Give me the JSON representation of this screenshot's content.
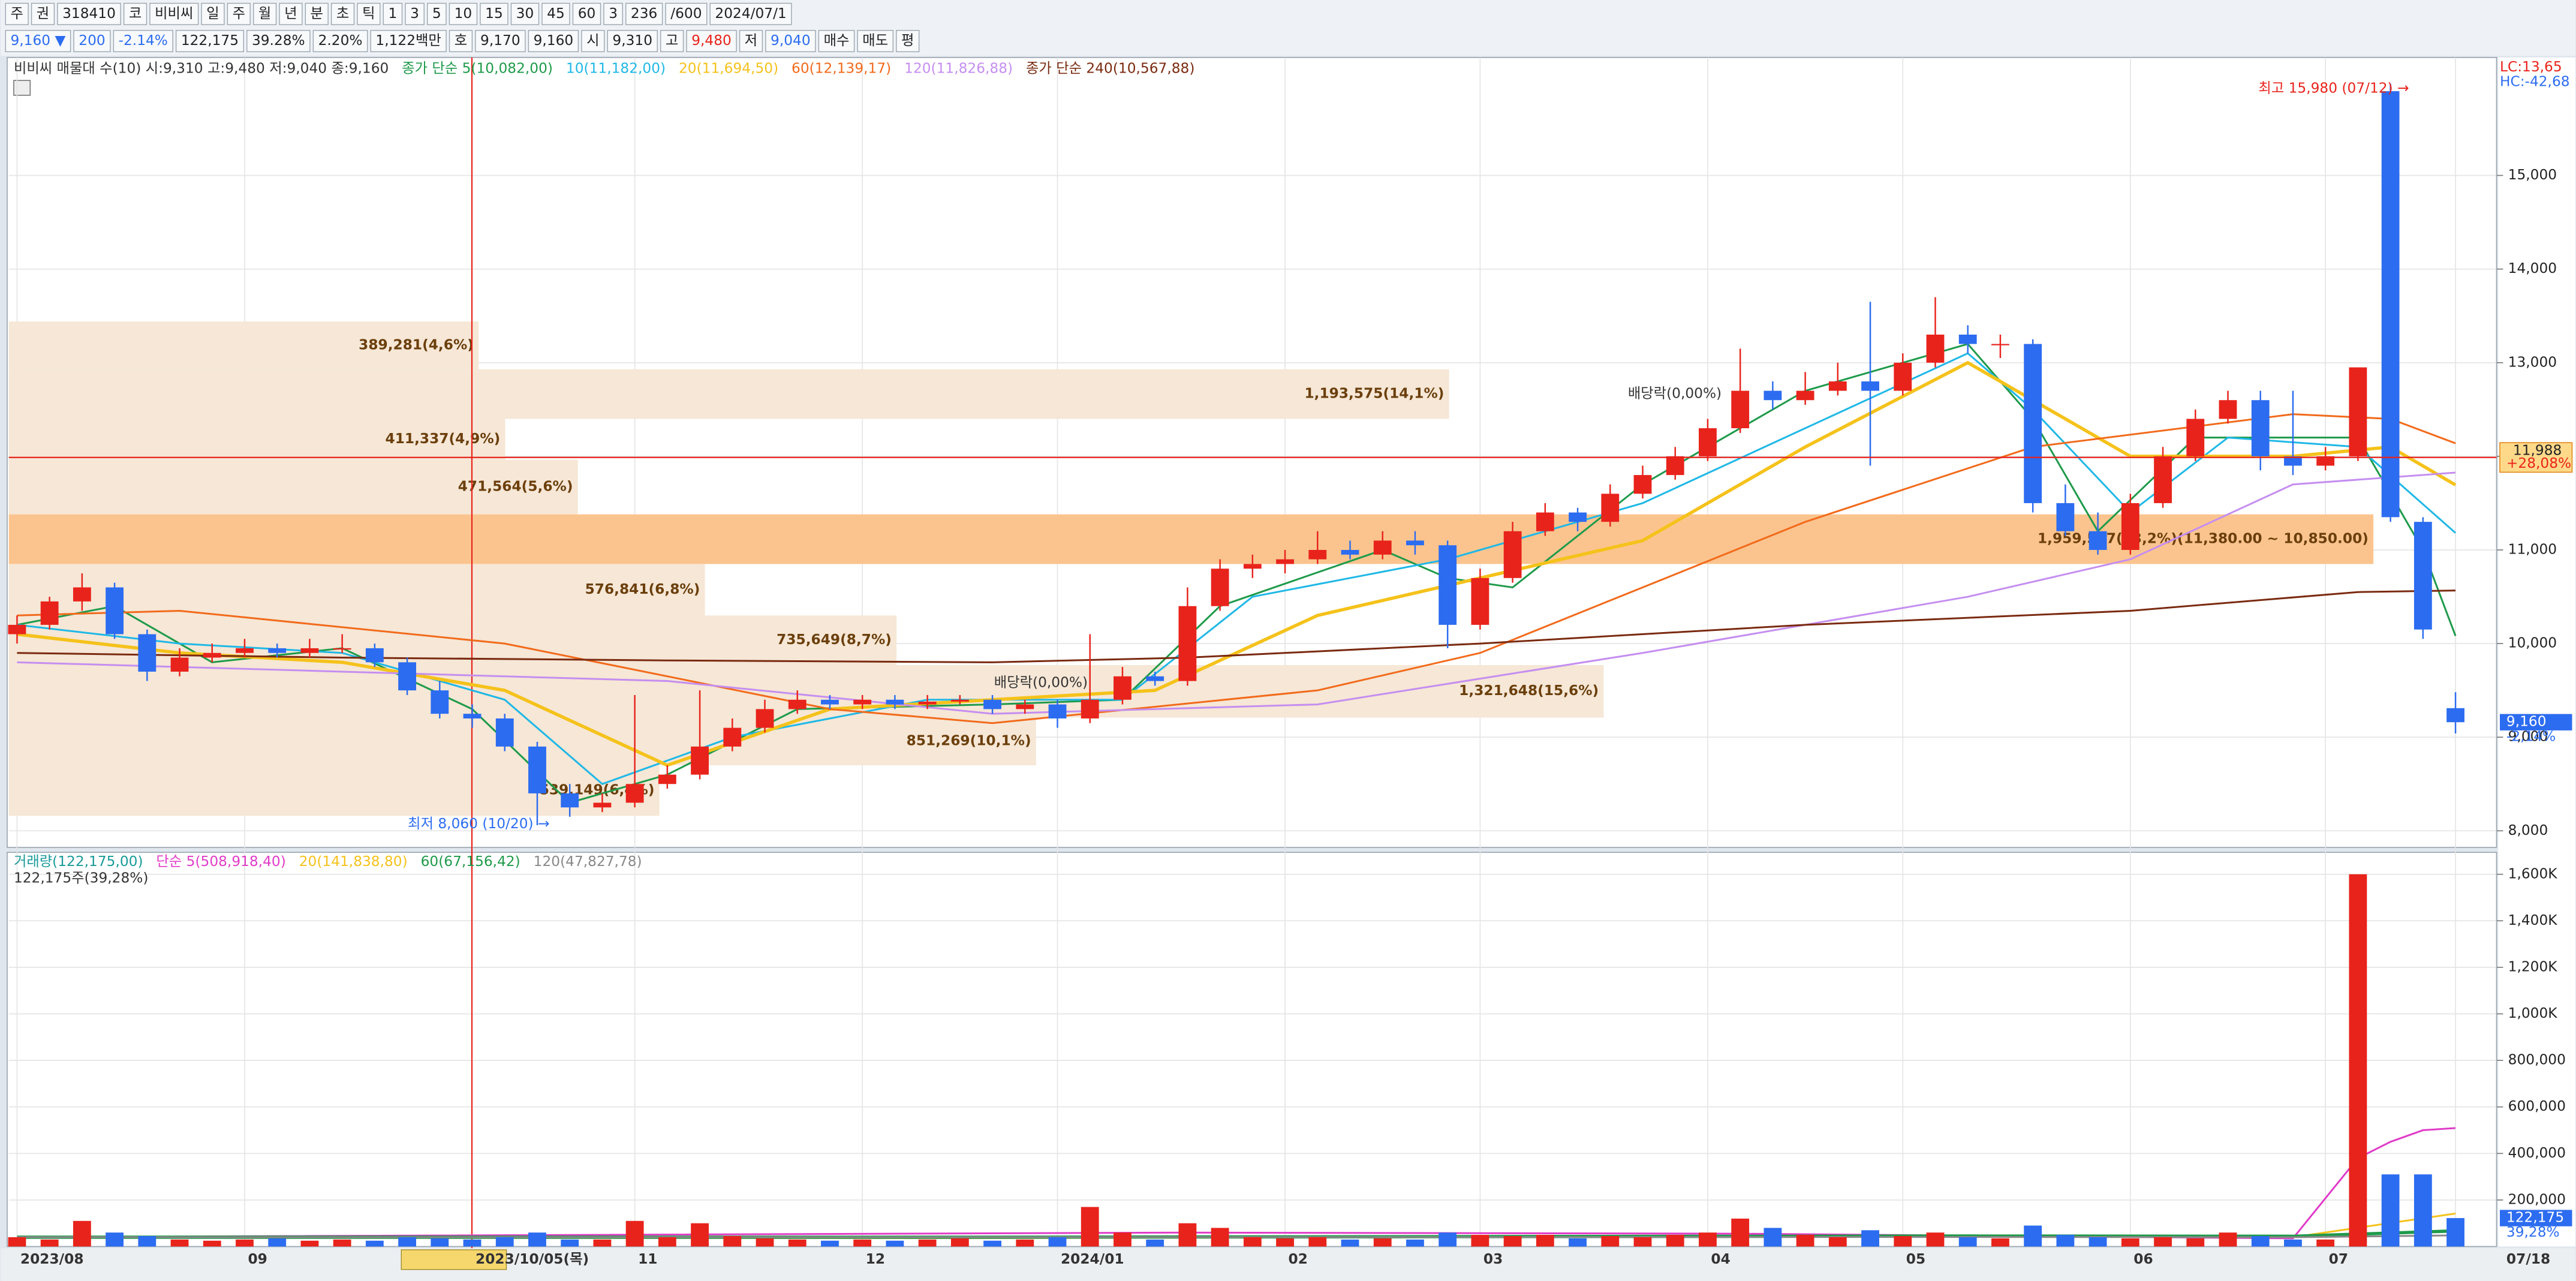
{
  "toolbar": {
    "row1": [
      "주",
      "권",
      "318410",
      "코",
      "비비씨",
      "일",
      "주",
      "월",
      "년",
      "분",
      "초",
      "틱",
      "1",
      "3",
      "5",
      "10",
      "15",
      "30",
      "45",
      "60",
      "3",
      "236",
      "/600",
      "2024/07/1"
    ],
    "row2": [
      "9,160 ▼",
      "200",
      "-2.14%",
      "122,175",
      "39.28%",
      "2.20%",
      "1,122백만",
      "호",
      "9,170",
      "9,160",
      "시",
      "9,310",
      "고",
      "9,480",
      "저",
      "9,040",
      "매수",
      "매도",
      "평"
    ]
  },
  "chart_data": [
    {
      "type": "candlestick",
      "legend_prefix": "비비씨 매물대 수(10)  시:9,310 고:9,480 저:9,040 종:9,160",
      "corner_labels": {
        "lc": "LC:13,65",
        "hc": "HC:-42,68"
      },
      "annotations": [
        "최고 15,980 (07/12) →",
        "최저 8,060 (10/20) →",
        "배당락(0,00%)",
        "배당락(0,00%)"
      ],
      "up_color": "#e8231b",
      "down_color": "#2c6cf0",
      "ylim": [
        7840,
        16260
      ],
      "yticks": [
        {
          "value": 8000,
          "label": "8,000"
        },
        {
          "value": 9000,
          "label": "9,000"
        },
        {
          "value": 10000,
          "label": "10,000"
        },
        {
          "value": 11000,
          "label": "11,000"
        },
        {
          "value": 12000,
          "label": "12,000"
        },
        {
          "value": 13000,
          "label": "13,000"
        },
        {
          "value": 14000,
          "label": "14,000"
        },
        {
          "value": 15000,
          "label": "15,000"
        }
      ],
      "grid": true,
      "ohlc": [
        [
          10100,
          10300,
          10000,
          10200
        ],
        [
          10200,
          10500,
          10150,
          10450
        ],
        [
          10450,
          10750,
          10350,
          10600
        ],
        [
          10600,
          10650,
          10050,
          10100
        ],
        [
          10100,
          10150,
          9600,
          9700
        ],
        [
          9700,
          9950,
          9650,
          9850
        ],
        [
          9850,
          10000,
          9800,
          9900
        ],
        [
          9900,
          10050,
          9850,
          9950
        ],
        [
          9950,
          10000,
          9850,
          9900
        ],
        [
          9900,
          10050,
          9850,
          9950
        ],
        [
          9950,
          10100,
          9900,
          9950
        ],
        [
          9950,
          10000,
          9750,
          9800
        ],
        [
          9800,
          9850,
          9450,
          9500
        ],
        [
          9500,
          9600,
          9200,
          9250
        ],
        [
          9250,
          9350,
          9100,
          9200
        ],
        [
          9200,
          9250,
          8850,
          8900
        ],
        [
          8900,
          8950,
          8060,
          8400
        ],
        [
          8400,
          8500,
          8150,
          8250
        ],
        [
          8250,
          8400,
          8200,
          8300
        ],
        [
          8300,
          9450,
          8250,
          8500
        ],
        [
          8500,
          8700,
          8450,
          8600
        ],
        [
          8600,
          9500,
          8550,
          8900
        ],
        [
          8900,
          9200,
          8850,
          9100
        ],
        [
          9100,
          9400,
          9050,
          9300
        ],
        [
          9300,
          9500,
          9250,
          9400
        ],
        [
          9400,
          9450,
          9300,
          9350
        ],
        [
          9350,
          9450,
          9300,
          9400
        ],
        [
          9400,
          9450,
          9300,
          9350
        ],
        [
          9350,
          9450,
          9300,
          9380
        ],
        [
          9380,
          9450,
          9350,
          9400
        ],
        [
          9400,
          9450,
          9250,
          9300
        ],
        [
          9300,
          9400,
          9250,
          9350
        ],
        [
          9350,
          9400,
          9100,
          9200
        ],
        [
          9200,
          10100,
          9150,
          9400
        ],
        [
          9400,
          9750,
          9350,
          9650
        ],
        [
          9650,
          9700,
          9550,
          9600
        ],
        [
          9600,
          10600,
          9550,
          10400
        ],
        [
          10400,
          10900,
          10350,
          10800
        ],
        [
          10800,
          10950,
          10700,
          10850
        ],
        [
          10850,
          11000,
          10750,
          10900
        ],
        [
          10900,
          11200,
          10850,
          11000
        ],
        [
          11000,
          11100,
          10900,
          10950
        ],
        [
          10950,
          11200,
          10900,
          11100
        ],
        [
          11100,
          11200,
          10950,
          11050
        ],
        [
          11050,
          11100,
          9950,
          10200
        ],
        [
          10200,
          10800,
          10150,
          10700
        ],
        [
          10700,
          11300,
          10650,
          11200
        ],
        [
          11200,
          11500,
          11150,
          11400
        ],
        [
          11400,
          11450,
          11200,
          11300
        ],
        [
          11300,
          11700,
          11250,
          11600
        ],
        [
          11600,
          11900,
          11550,
          11800
        ],
        [
          11800,
          12100,
          11750,
          12000
        ],
        [
          12000,
          12400,
          11950,
          12300
        ],
        [
          12300,
          13150,
          12250,
          12700
        ],
        [
          12700,
          12800,
          12500,
          12600
        ],
        [
          12600,
          12900,
          12550,
          12700
        ],
        [
          12700,
          13000,
          12650,
          12800
        ],
        [
          12800,
          13650,
          11900,
          12700
        ],
        [
          12700,
          13100,
          12650,
          13000
        ],
        [
          13000,
          13700,
          12950,
          13300
        ],
        [
          13300,
          13400,
          13100,
          13200
        ],
        [
          13200,
          13300,
          13050,
          13200
        ],
        [
          13200,
          13250,
          11400,
          11500
        ],
        [
          11500,
          11700,
          11150,
          11200
        ],
        [
          11200,
          11400,
          10950,
          11000
        ],
        [
          11000,
          11600,
          10950,
          11500
        ],
        [
          11500,
          12100,
          11450,
          12000
        ],
        [
          12000,
          12500,
          11950,
          12400
        ],
        [
          12400,
          12700,
          12350,
          12600
        ],
        [
          12600,
          12700,
          11850,
          12000
        ],
        [
          12000,
          12700,
          11800,
          11900
        ],
        [
          11900,
          12100,
          11850,
          12000
        ],
        [
          12000,
          12950,
          11950,
          12950
        ],
        [
          15900,
          15980,
          11300,
          11350
        ],
        [
          11300,
          11350,
          10050,
          10150
        ],
        [
          9310,
          9480,
          9040,
          9160
        ]
      ],
      "volume_profile": {
        "bins": [
          13440,
          12930,
          12400,
          11965,
          11380,
          10850,
          10300,
          9770,
          9210,
          8700,
          8160
        ],
        "values": [
          389281,
          1193575,
          411337,
          471564,
          1959567,
          576841,
          735649,
          1321648,
          851269,
          539149
        ],
        "value_labels": [
          "389,281(4,6%)",
          "1,193,575(14,1%)",
          "411,337(4,9%)",
          "471,564(5,6%)",
          "1,959,567(23,2%)(11,380.00 ~ 10,850.00)",
          "576,841(6,8%)",
          "735,649(8,7%)",
          "1,321,648(15,6%)",
          "851,269(10,1%)",
          "539,149(6,4%)"
        ],
        "color": "#f6e7d6",
        "highlight_color": "#fbc48e"
      },
      "lines": [
        {
          "name": "종가 단순 5(10,082,00)",
          "color": "#1e9a4a",
          "x": [
            0,
            3,
            6,
            10,
            14,
            17,
            20,
            24,
            30,
            34,
            37,
            42,
            44,
            46,
            50,
            55,
            60,
            62,
            64,
            67,
            70,
            72,
            74,
            75
          ],
          "values": [
            10200,
            10400,
            9800,
            9950,
            9300,
            8300,
            8600,
            9300,
            9350,
            9400,
            10400,
            11000,
            10700,
            10600,
            11700,
            12700,
            13200,
            12400,
            11200,
            12200,
            12200,
            12200,
            11000,
            10082
          ]
        },
        {
          "name": "10(11,182,00)",
          "color": "#1fb8e6",
          "x": [
            0,
            5,
            10,
            15,
            18,
            22,
            28,
            34,
            38,
            44,
            50,
            55,
            60,
            62,
            65,
            68,
            72,
            75
          ],
          "values": [
            10200,
            10000,
            9900,
            9400,
            8500,
            9000,
            9400,
            9400,
            10500,
            10900,
            11500,
            12300,
            13100,
            12500,
            11400,
            12200,
            12100,
            11182
          ]
        },
        {
          "name": "20(11,694,50)",
          "color": "#f5c21b",
          "x": [
            0,
            5,
            10,
            15,
            20,
            25,
            30,
            35,
            40,
            45,
            50,
            55,
            60,
            62,
            65,
            70,
            73,
            75
          ],
          "values": [
            10100,
            9900,
            9800,
            9500,
            8700,
            9300,
            9400,
            9500,
            10300,
            10700,
            11100,
            12100,
            13000,
            12600,
            12000,
            12000,
            12100,
            11694
          ]
        },
        {
          "name": "60(12,139,17)",
          "color": "#f26a1b",
          "x": [
            0,
            5,
            15,
            25,
            30,
            40,
            45,
            55,
            62,
            70,
            73,
            75
          ],
          "values": [
            10300,
            10350,
            10000,
            9300,
            9150,
            9500,
            9900,
            11300,
            12100,
            12450,
            12400,
            12139
          ]
        },
        {
          "name": "120(11,826,88)",
          "color": "#c58ef0",
          "x": [
            0,
            10,
            20,
            30,
            40,
            50,
            60,
            65,
            70,
            75
          ],
          "values": [
            9800,
            9700,
            9600,
            9250,
            9350,
            9900,
            10500,
            10900,
            11700,
            11826
          ]
        },
        {
          "name": "종가 단순 240(10,567,88)",
          "color": "#7a2a10",
          "x": [
            0,
            10,
            20,
            30,
            36,
            45,
            55,
            65,
            72,
            75
          ],
          "values": [
            9900,
            9850,
            9820,
            9800,
            9850,
            10000,
            10200,
            10350,
            10550,
            10567
          ]
        }
      ],
      "current_line": {
        "value": 11988,
        "label": "11,988",
        "change": "+28,08%",
        "color": "#e8231b"
      },
      "last_price": {
        "value": 9160,
        "label": "9,160",
        "change": "-2,14%"
      }
    },
    {
      "type": "bar",
      "name": "거래량(122,175,00)",
      "subtitle": "122,175주(39,28%)",
      "color": "#1a9a9a",
      "categories": [
        "2023/08",
        null,
        null,
        null,
        null,
        null,
        null,
        "09",
        null,
        null,
        null,
        null,
        null,
        null,
        "2023/10/05(목)",
        null,
        null,
        null,
        null,
        "11",
        null,
        null,
        null,
        null,
        null,
        null,
        "12",
        null,
        null,
        null,
        null,
        null,
        "2024/01",
        null,
        null,
        null,
        null,
        null,
        null,
        "02",
        null,
        null,
        null,
        null,
        null,
        "03",
        null,
        null,
        null,
        null,
        null,
        null,
        "04",
        null,
        null,
        null,
        null,
        null,
        "05",
        null,
        null,
        null,
        null,
        null,
        null,
        "06",
        null,
        null,
        null,
        null,
        null,
        "07",
        null,
        null,
        null,
        "07/18"
      ],
      "values": [
        40000,
        30000,
        110000,
        60000,
        45000,
        30000,
        25000,
        30000,
        35000,
        25000,
        30000,
        25000,
        40000,
        35000,
        30000,
        40000,
        60000,
        30000,
        30000,
        110000,
        40000,
        100000,
        45000,
        35000,
        30000,
        25000,
        30000,
        25000,
        30000,
        35000,
        25000,
        30000,
        40000,
        170000,
        60000,
        30000,
        100000,
        80000,
        40000,
        35000,
        40000,
        30000,
        35000,
        30000,
        60000,
        50000,
        45000,
        50000,
        35000,
        45000,
        40000,
        50000,
        60000,
        120000,
        80000,
        50000,
        40000,
        70000,
        45000,
        60000,
        40000,
        35000,
        90000,
        50000,
        40000,
        35000,
        40000,
        35000,
        60000,
        45000,
        30000,
        30000,
        1600000,
        310000,
        310000,
        122175
      ],
      "ylim": [
        0,
        1680000
      ],
      "yticks": [
        {
          "value": 200000,
          "label": "200,000"
        },
        {
          "value": 400000,
          "label": "400,000"
        },
        {
          "value": 600000,
          "label": "600,000"
        },
        {
          "value": 800000,
          "label": "800,000"
        },
        {
          "value": 1000000,
          "label": "1,000K"
        },
        {
          "value": 1200000,
          "label": "1,200K"
        },
        {
          "value": 1400000,
          "label": "1,400K"
        },
        {
          "value": 1600000,
          "label": "1,600K"
        }
      ],
      "grid": true,
      "lines": [
        {
          "name": "단순 5(508,918,40)",
          "color": "#e03cc8",
          "x": [
            0,
            36,
            53,
            70,
            72,
            73,
            74,
            75
          ],
          "values": [
            40000,
            60000,
            55000,
            35000,
            380000,
            450000,
            500000,
            508918
          ]
        },
        {
          "name": "20(141,838,80)",
          "color": "#f5c21b",
          "x": [
            0,
            30,
            60,
            70,
            75
          ],
          "values": [
            38000,
            36000,
            46000,
            40000,
            141838
          ]
        },
        {
          "name": "60(67,156,42)",
          "color": "#1e9a4a",
          "x": [
            0,
            30,
            60,
            70,
            75
          ],
          "values": [
            40000,
            40000,
            45000,
            44000,
            67156
          ]
        },
        {
          "name": "120(47,827,78)",
          "color": "#888888",
          "x": [
            0,
            30,
            60,
            70,
            75
          ],
          "values": [
            40000,
            40000,
            41000,
            40000,
            47827
          ]
        }
      ],
      "last_value": {
        "value": 122175,
        "label": "122,175",
        "change": "39,28%"
      }
    }
  ]
}
